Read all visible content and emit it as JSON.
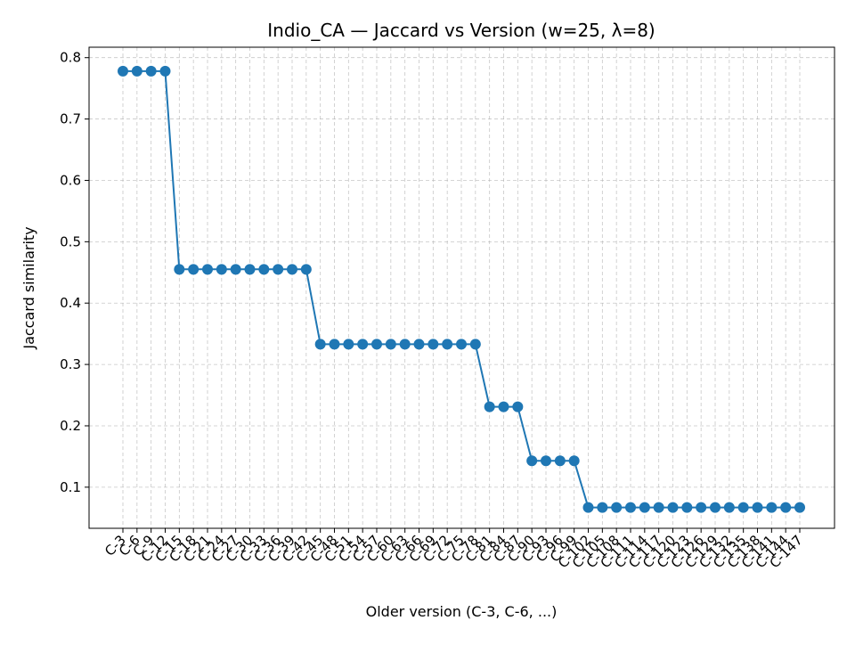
{
  "chart_data": {
    "type": "line",
    "title": "Indio_CA — Jaccard vs Version (w=25, λ=8)",
    "xlabel": "Older version (C-3, C-6, ...)",
    "ylabel": "Jaccard similarity",
    "ylim": [
      0.033,
      0.817
    ],
    "yticks": [
      0.1,
      0.2,
      0.3,
      0.4,
      0.5,
      0.6,
      0.7,
      0.8
    ],
    "ytick_labels": [
      "0.1",
      "0.2",
      "0.3",
      "0.4",
      "0.5",
      "0.6",
      "0.7",
      "0.8"
    ],
    "grid": true,
    "color": "#1f77b4",
    "categories": [
      "C-3",
      "C-6",
      "C-9",
      "C-12",
      "C-15",
      "C-18",
      "C-21",
      "C-24",
      "C-27",
      "C-30",
      "C-33",
      "C-36",
      "C-39",
      "C-42",
      "C-45",
      "C-48",
      "C-51",
      "C-54",
      "C-57",
      "C-60",
      "C-63",
      "C-66",
      "C-69",
      "C-72",
      "C-75",
      "C-78",
      "C-81",
      "C-84",
      "C-87",
      "C-90",
      "C-93",
      "C-96",
      "C-99",
      "C-102",
      "C-105",
      "C-108",
      "C-111",
      "C-114",
      "C-117",
      "C-120",
      "C-123",
      "C-126",
      "C-129",
      "C-132",
      "C-135",
      "C-138",
      "C-141",
      "C-144",
      "C-147"
    ],
    "values": [
      0.778,
      0.778,
      0.778,
      0.778,
      0.455,
      0.455,
      0.455,
      0.455,
      0.455,
      0.455,
      0.455,
      0.455,
      0.455,
      0.455,
      0.333,
      0.333,
      0.333,
      0.333,
      0.333,
      0.333,
      0.333,
      0.333,
      0.333,
      0.333,
      0.333,
      0.333,
      0.231,
      0.231,
      0.231,
      0.143,
      0.143,
      0.143,
      0.143,
      0.067,
      0.067,
      0.067,
      0.067,
      0.067,
      0.067,
      0.067,
      0.067,
      0.067,
      0.067,
      0.067,
      0.067,
      0.067,
      0.067,
      0.067,
      0.067
    ]
  }
}
